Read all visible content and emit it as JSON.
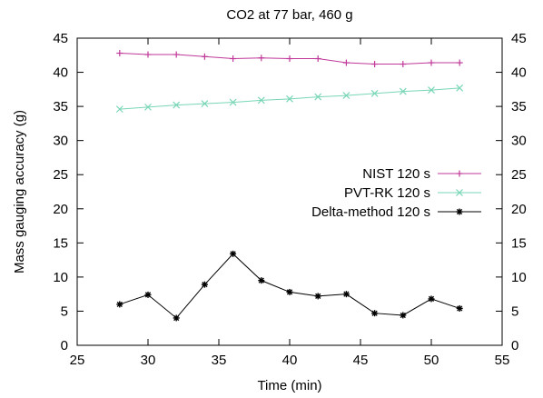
{
  "chart_data": {
    "type": "line",
    "title": "CO2 at 77 bar, 460 g",
    "xlabel": "Time (min)",
    "ylabel": "Mass gauging accuracy (g)",
    "xlim": [
      25,
      55
    ],
    "ylim": [
      0,
      45
    ],
    "xticks": [
      25,
      30,
      35,
      40,
      45,
      50,
      55
    ],
    "yticks": [
      0,
      5,
      10,
      15,
      20,
      25,
      30,
      35,
      40,
      45
    ],
    "right_axis_ticks": true,
    "grid": false,
    "legend_position": "center-right",
    "series": [
      {
        "name": "NIST 120 s",
        "color": "#c0389a",
        "marker": "plus",
        "x": [
          28,
          30,
          32,
          34,
          36,
          38,
          40,
          42,
          44,
          46,
          48,
          50,
          52
        ],
        "values": [
          42.8,
          42.6,
          42.6,
          42.3,
          42.0,
          42.1,
          42.0,
          42.0,
          41.4,
          41.2,
          41.2,
          41.4,
          41.4
        ]
      },
      {
        "name": "PVT-RK 120 s",
        "color": "#7ad6b8",
        "marker": "x",
        "x": [
          28,
          30,
          32,
          34,
          36,
          38,
          40,
          42,
          44,
          46,
          48,
          50,
          52
        ],
        "values": [
          34.6,
          34.9,
          35.2,
          35.4,
          35.6,
          35.9,
          36.1,
          36.4,
          36.6,
          36.9,
          37.2,
          37.4,
          37.7
        ]
      },
      {
        "name": "Delta-method 120 s",
        "color": "#000000",
        "marker": "star",
        "x": [
          28,
          30,
          32,
          34,
          36,
          38,
          40,
          42,
          44,
          46,
          48,
          50,
          52
        ],
        "values": [
          6.0,
          7.4,
          4.0,
          8.9,
          13.4,
          9.5,
          7.8,
          7.2,
          7.5,
          4.7,
          4.4,
          6.8,
          5.4
        ]
      }
    ]
  }
}
